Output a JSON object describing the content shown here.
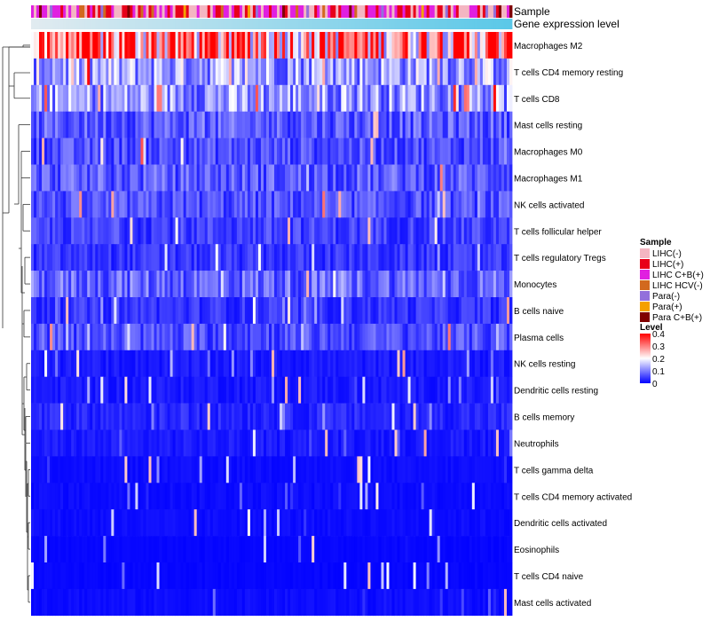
{
  "chart_data": {
    "type": "heatmap",
    "annotation_rows": [
      "Sample",
      "Gene expression level"
    ],
    "rows": [
      {
        "label": "Macrophages M2",
        "mean": 0.3
      },
      {
        "label": "T cells CD4 memory resting",
        "mean": 0.13
      },
      {
        "label": "T cells CD8",
        "mean": 0.12
      },
      {
        "label": "Mast cells resting",
        "mean": 0.07
      },
      {
        "label": "Macrophages M0",
        "mean": 0.06
      },
      {
        "label": "Macrophages M1",
        "mean": 0.07
      },
      {
        "label": "NK cells activated",
        "mean": 0.06
      },
      {
        "label": "T cells follicular helper",
        "mean": 0.05
      },
      {
        "label": "T cells regulatory  Tregs",
        "mean": 0.04
      },
      {
        "label": "Monocytes",
        "mean": 0.08
      },
      {
        "label": "B cells naive",
        "mean": 0.04
      },
      {
        "label": "Plasma cells",
        "mean": 0.06
      },
      {
        "label": "NK cells resting",
        "mean": 0.02
      },
      {
        "label": "Dendritic cells resting",
        "mean": 0.02
      },
      {
        "label": "B cells memory",
        "mean": 0.03
      },
      {
        "label": "Neutrophils",
        "mean": 0.02
      },
      {
        "label": "T cells gamma delta",
        "mean": 0.01
      },
      {
        "label": "T cells CD4 memory activated",
        "mean": 0.01
      },
      {
        "label": "Dendritic cells activated",
        "mean": 0.01
      },
      {
        "label": "Eosinophils",
        "mean": 0.005
      },
      {
        "label": "T cells CD4 naive",
        "mean": 0.005
      },
      {
        "label": "Mast cells activated",
        "mean": 0.01
      }
    ],
    "sample_legend": {
      "title": "Sample",
      "items": [
        {
          "label": "LIHC(-)",
          "color": "#f4b6c2"
        },
        {
          "label": "LIHC(+)",
          "color": "#e8001a"
        },
        {
          "label": "LIHC C+B(+)",
          "color": "#e020e0"
        },
        {
          "label": "LIHC HCV(-)",
          "color": "#d2691e"
        },
        {
          "label": "Para(-)",
          "color": "#9370db"
        },
        {
          "label": "Para(+)",
          "color": "#f5a000"
        },
        {
          "label": "Para C+B(+)",
          "color": "#800000"
        }
      ]
    },
    "level_legend": {
      "title": "Level",
      "ticks": [
        "0.4",
        "0.3",
        "0.2",
        "0.1",
        "0"
      ],
      "min": 0,
      "max": 0.4,
      "colors": [
        "#0000ff",
        "#ffffff",
        "#ff0000"
      ]
    },
    "gene_expression_color": "#5bc8e8"
  }
}
